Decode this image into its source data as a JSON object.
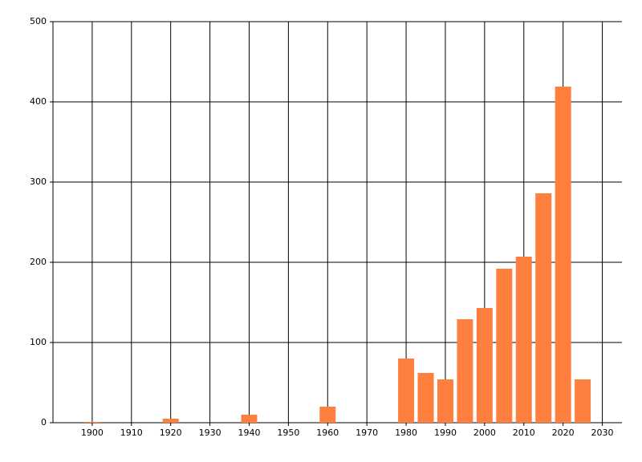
{
  "chart_data": {
    "type": "bar",
    "x": [
      1900,
      1920,
      1940,
      1960,
      1980,
      1985,
      1990,
      1995,
      2000,
      2005,
      2010,
      2015,
      2020,
      2025
    ],
    "values": [
      1,
      5,
      10,
      20,
      80,
      62,
      54,
      129,
      143,
      192,
      207,
      286,
      419,
      54
    ],
    "color": "#ff7f3f",
    "xlim": [
      1890,
      2035
    ],
    "xticks": [
      1900,
      1910,
      1920,
      1930,
      1940,
      1950,
      1960,
      1970,
      1980,
      1990,
      2000,
      2010,
      2020,
      2030
    ],
    "ylim": [
      0,
      500
    ],
    "yticks": [
      0,
      100,
      200,
      300,
      400,
      500
    ],
    "grid": true
  }
}
